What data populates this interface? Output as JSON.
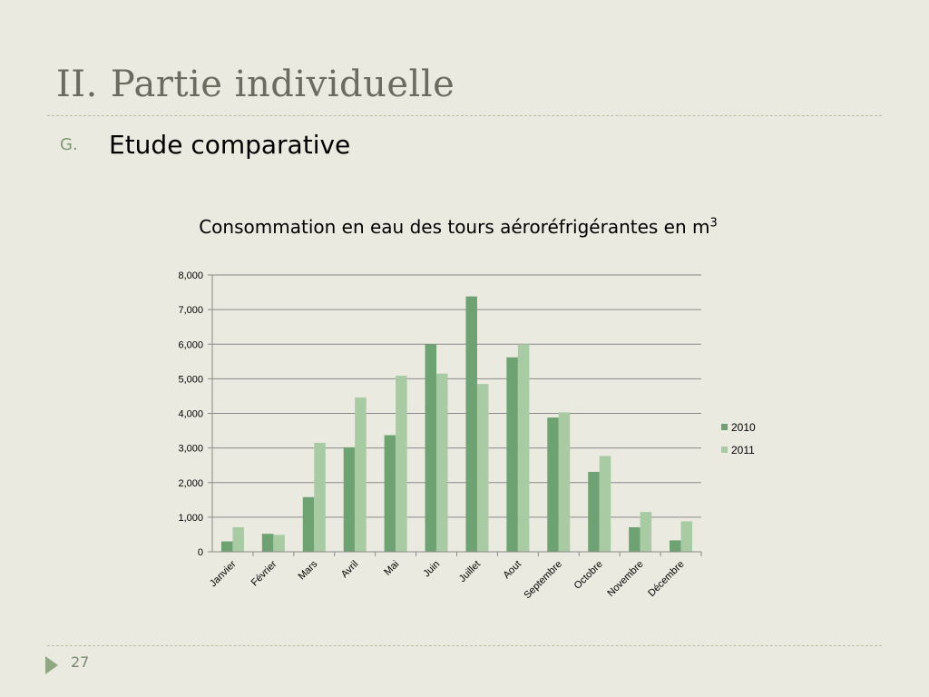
{
  "slide": {
    "title_number": "II.",
    "title_text": "Partie individuelle",
    "bullet_letter": "G.",
    "bullet_text": "Etude comparative",
    "page_number": "27"
  },
  "colors": {
    "series_2010": "#6fa272",
    "series_2011": "#a9cba4",
    "gridline": "#8a8a8a",
    "background": "#ebeae0"
  },
  "chart_data": {
    "type": "bar",
    "title": "Consommation en eau des tours aéroréfrigérantes en m",
    "title_superscript": "3",
    "categories": [
      "Janvier",
      "Février",
      "Mars",
      "Avril",
      "Mai",
      "Juin",
      "Juillet",
      "Aout",
      "Septembre",
      "Octobre",
      "Novembre",
      "Décembre"
    ],
    "series": [
      {
        "name": "2010",
        "values": [
          300,
          520,
          1580,
          3020,
          3370,
          6000,
          7380,
          5620,
          3880,
          2310,
          710,
          330
        ]
      },
      {
        "name": "2011",
        "values": [
          710,
          490,
          3150,
          4460,
          5090,
          5150,
          4850,
          6000,
          4030,
          2770,
          1150,
          880
        ]
      }
    ],
    "ylim": [
      0,
      8000
    ],
    "yticks": [
      "0",
      "1,000",
      "2,000",
      "3,000",
      "4,000",
      "5,000",
      "6,000",
      "7,000",
      "8,000"
    ],
    "xlabel": "",
    "ylabel": "",
    "grid": true,
    "legend_position": "right"
  }
}
